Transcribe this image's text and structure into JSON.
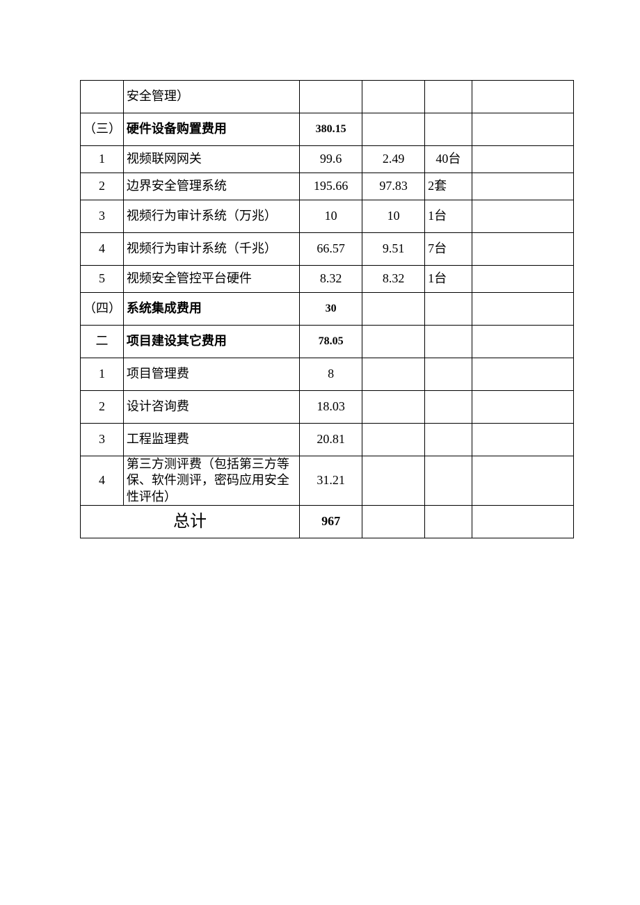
{
  "table": {
    "r0": {
      "idx": "",
      "name": "安全管理）",
      "amt": "",
      "unit": "",
      "qty": "",
      "rem": ""
    },
    "r1": {
      "idx": "（三）",
      "name": "硬件设备购置费用",
      "amt": "380.15",
      "unit": "",
      "qty": "",
      "rem": ""
    },
    "r2": {
      "idx": "1",
      "name": "视频联网网关",
      "amt": "99.6",
      "unit": "2.49",
      "qty": "40台",
      "rem": ""
    },
    "r3": {
      "idx": "2",
      "name": "边界安全管理系统",
      "amt": "195.66",
      "unit": "97.83",
      "qty": "2套",
      "rem": ""
    },
    "r4": {
      "idx": "3",
      "name": "视频行为审计系统（万兆）",
      "amt": "10",
      "unit": "10",
      "qty": "1台",
      "rem": ""
    },
    "r5": {
      "idx": "4",
      "name": "视频行为审计系统（千兆）",
      "amt": "66.57",
      "unit": "9.51",
      "qty": "7台",
      "rem": ""
    },
    "r6": {
      "idx": "5",
      "name": "视频安全管控平台硬件",
      "amt": "8.32",
      "unit": "8.32",
      "qty": "1台",
      "rem": ""
    },
    "r7": {
      "idx": "（四）",
      "name": "系统集成费用",
      "amt": "30",
      "unit": "",
      "qty": "",
      "rem": ""
    },
    "r8": {
      "idx": "二",
      "name": "项目建设其它费用",
      "amt": "78.05",
      "unit": "",
      "qty": "",
      "rem": ""
    },
    "r9": {
      "idx": "1",
      "name": "项目管理费",
      "amt": "8",
      "unit": "",
      "qty": "",
      "rem": ""
    },
    "r10": {
      "idx": "2",
      "name": "设计咨询费",
      "amt": "18.03",
      "unit": "",
      "qty": "",
      "rem": ""
    },
    "r11": {
      "idx": "3",
      "name": "工程监理费",
      "amt": "20.81",
      "unit": "",
      "qty": "",
      "rem": ""
    },
    "r12": {
      "idx": "4",
      "name": "第三方测评费（包括第三方等保、软件测评，密码应用安全性评估）",
      "amt": "31.21",
      "unit": "",
      "qty": "",
      "rem": ""
    },
    "total_label": "总计",
    "total_value": "967"
  }
}
